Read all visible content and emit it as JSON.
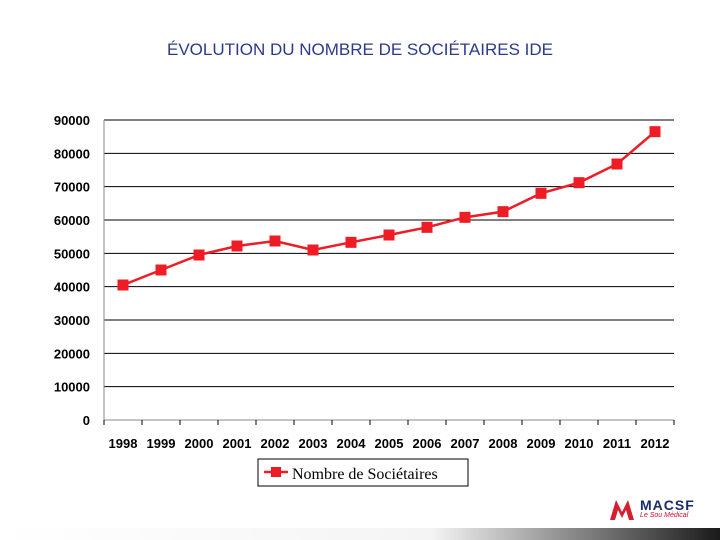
{
  "title": "ÉVOLUTION DU NOMBRE DE SOCIÉTAIRES IDE",
  "logo": {
    "name": "MACSF",
    "tagline": "Le Sou Médical"
  },
  "colors": {
    "series": "#ee1c25",
    "title": "#2b3a8c",
    "grid": "#000000"
  },
  "chart_data": {
    "type": "line",
    "title": "ÉVOLUTION DU NOMBRE DE SOCIÉTAIRES IDE",
    "xlabel": "",
    "ylabel": "",
    "x": [
      "1998",
      "1999",
      "2000",
      "2001",
      "2002",
      "2003",
      "2004",
      "2005",
      "2006",
      "2007",
      "2008",
      "2009",
      "2010",
      "2011",
      "2012"
    ],
    "series": [
      {
        "name": "Nombre de Sociétaires",
        "values": [
          40500,
          45000,
          49500,
          52200,
          53700,
          51000,
          53300,
          55500,
          57800,
          60800,
          62500,
          68000,
          71200,
          76800,
          86500
        ]
      }
    ],
    "ylim": [
      0,
      90000
    ],
    "yticks": [
      "0",
      "10000",
      "20000",
      "30000",
      "40000",
      "50000",
      "60000",
      "70000",
      "80000",
      "90000"
    ],
    "grid": true,
    "legend_position": "bottom",
    "marker": "square"
  }
}
